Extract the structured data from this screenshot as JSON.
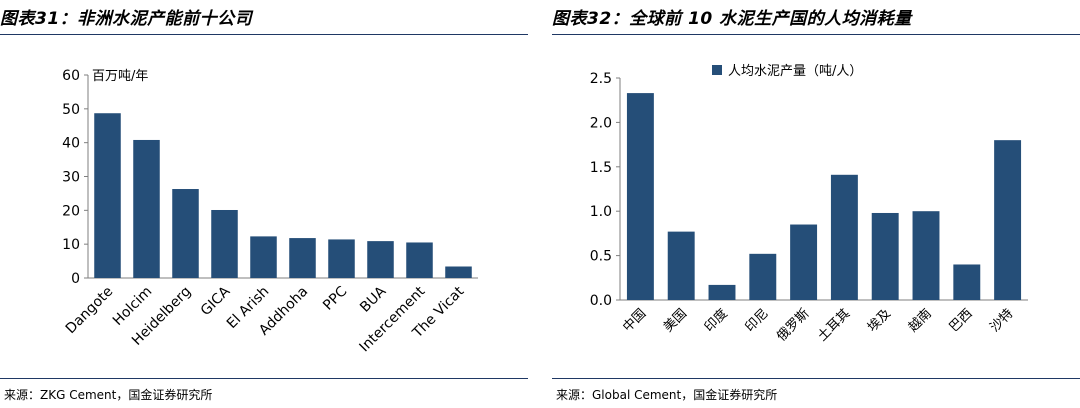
{
  "chart_data": [
    {
      "type": "bar",
      "title": "图表31：非洲水泥产能前十公司",
      "ylabel": "百万吨/年",
      "ylim": [
        0,
        60
      ],
      "yticks": [
        0,
        10,
        20,
        30,
        40,
        50,
        60
      ],
      "categories": [
        "Dangote",
        "Holcim",
        "Heidelberg",
        "GICA",
        "El Arish",
        "Addhoha",
        "PPC",
        "BUA",
        "Intercement",
        "The Vicat"
      ],
      "values": [
        48.7,
        40.8,
        26.3,
        20.1,
        12.3,
        11.8,
        11.4,
        10.9,
        10.5,
        3.4
      ],
      "color": "#254e78",
      "source": "来源：ZKG Cement，国金证券研究所"
    },
    {
      "type": "bar",
      "title": "图表32：全球前 10 水泥生产国的人均消耗量",
      "legend": "人均水泥产量（吨/人）",
      "legend_position": "top-center",
      "ylim": [
        0,
        2.5
      ],
      "yticks": [
        "0.0",
        "0.5",
        "1.0",
        "1.5",
        "2.0",
        "2.5"
      ],
      "categories": [
        "中国",
        "美国",
        "印度",
        "印尼",
        "俄罗斯",
        "土耳其",
        "埃及",
        "越南",
        "巴西",
        "沙特"
      ],
      "values": [
        2.33,
        0.77,
        0.17,
        0.52,
        0.85,
        1.41,
        0.98,
        1.0,
        0.4,
        1.8
      ],
      "color": "#254e78",
      "source": "来源：Global Cement，国金证券研究所"
    }
  ]
}
